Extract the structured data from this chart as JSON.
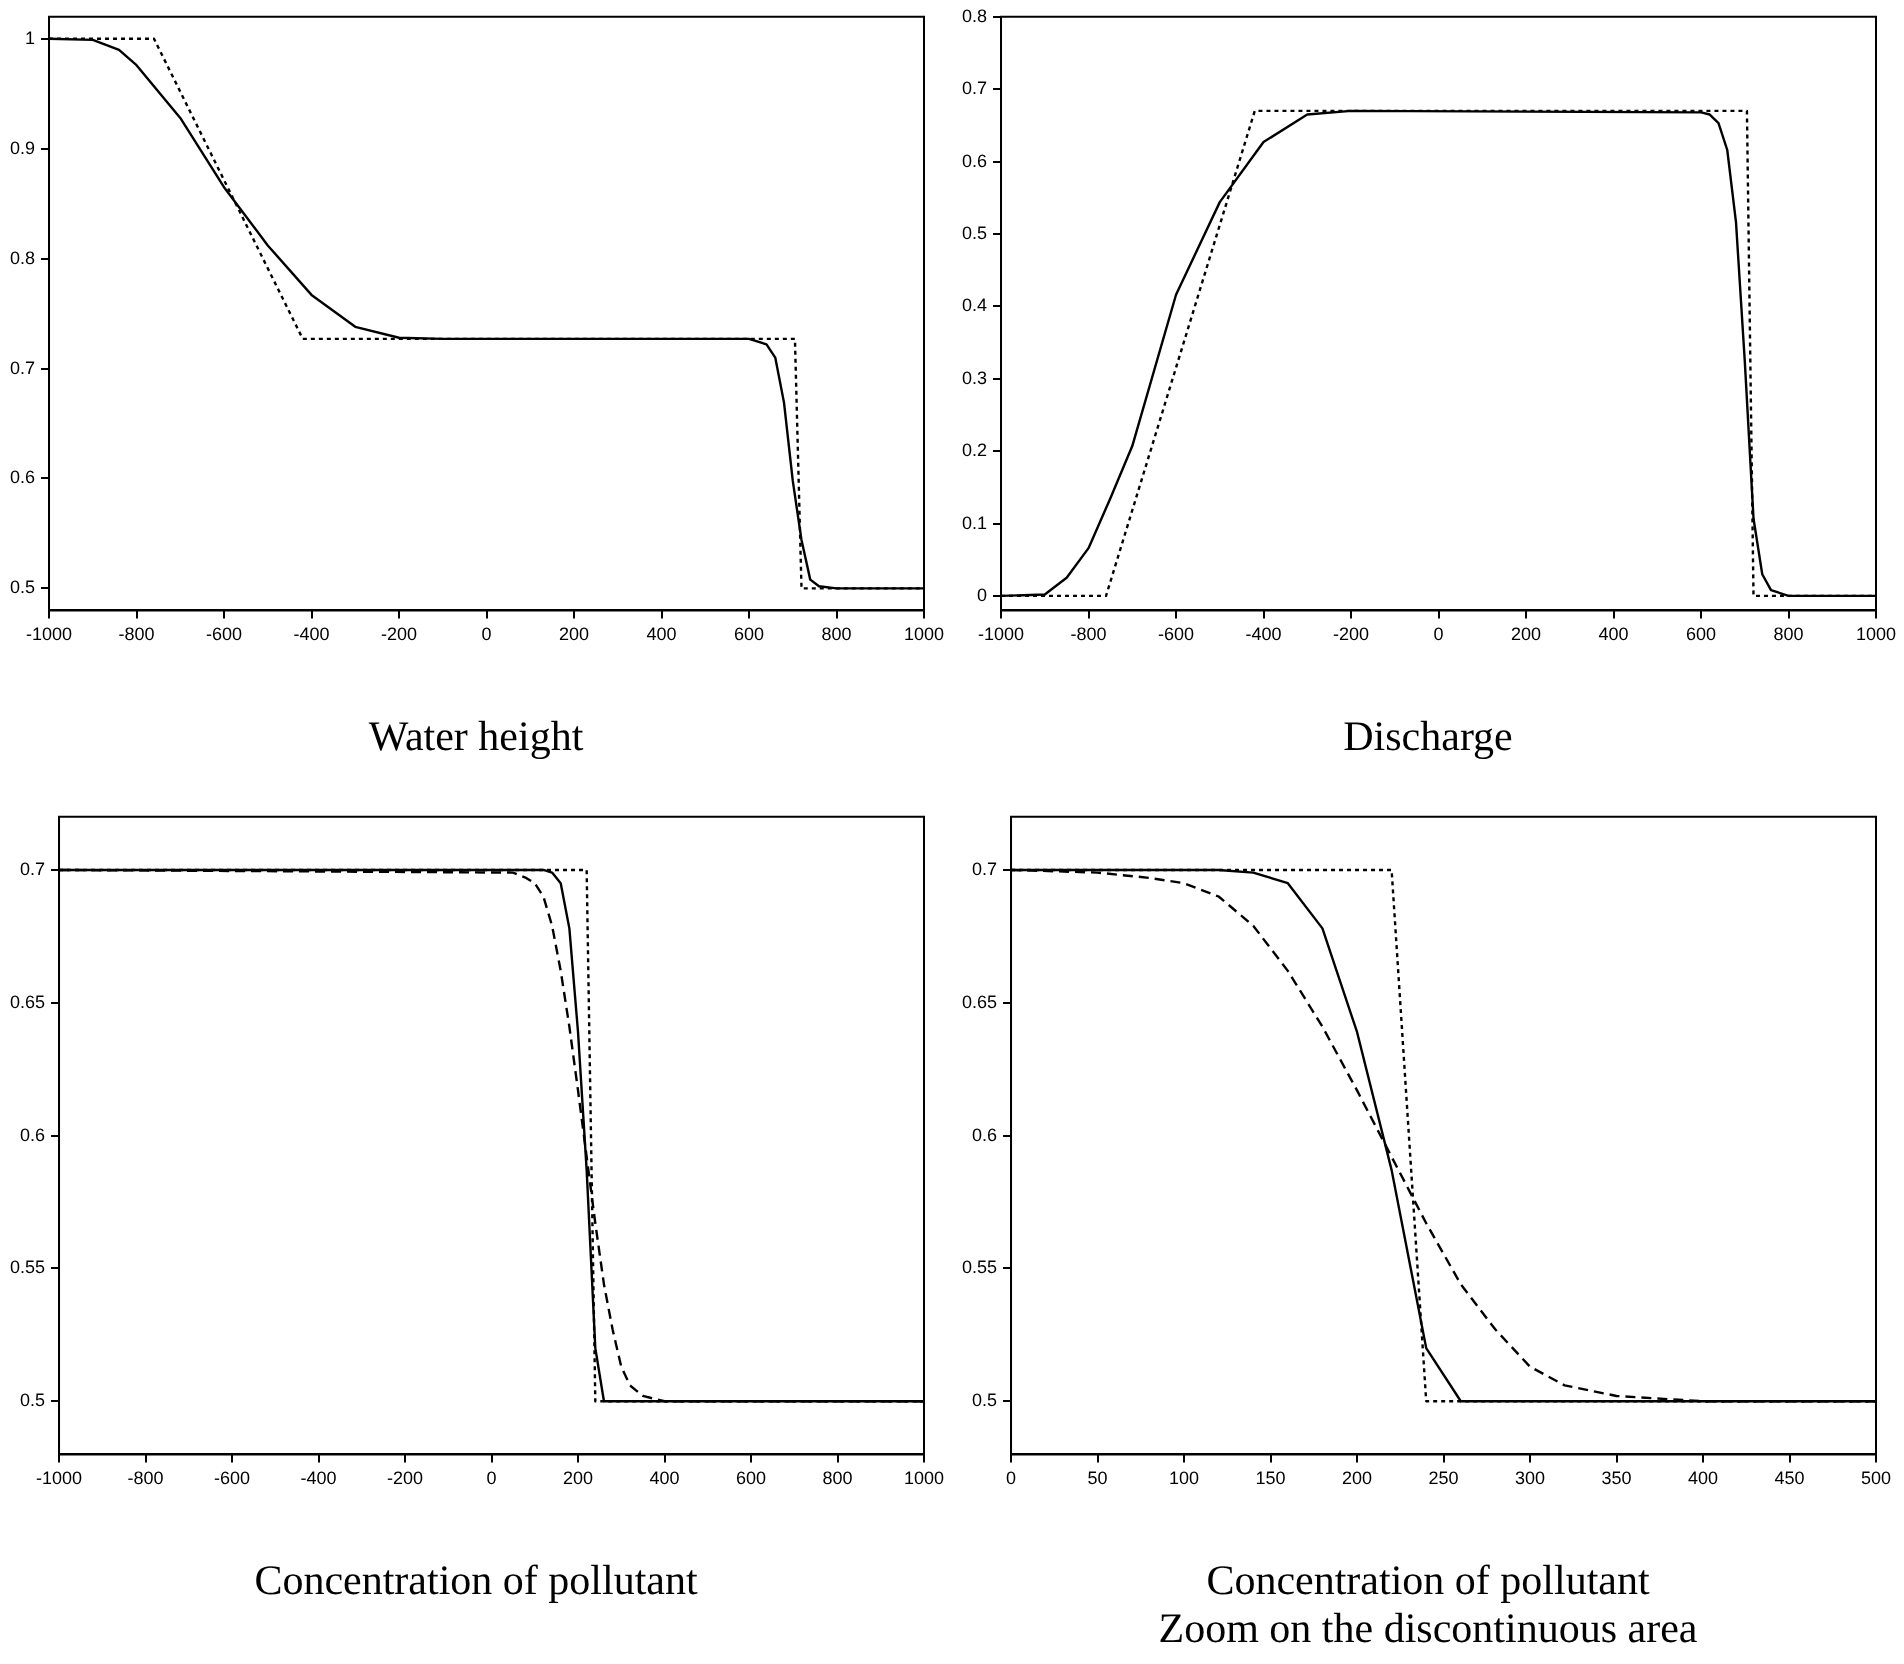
{
  "chart_data": [
    {
      "type": "line",
      "title": "Water height",
      "xlim": [
        -1000,
        1000
      ],
      "xticks": [
        -1000,
        -800,
        -600,
        -400,
        -200,
        0,
        200,
        400,
        600,
        800,
        1000
      ],
      "ylim": [
        0.48,
        1.02
      ],
      "yticks": [
        0.5,
        0.6,
        0.7,
        0.8,
        0.9,
        1
      ],
      "grid": false,
      "marker": "none",
      "series": [
        {
          "color": "#000000",
          "line_style": "solid",
          "x": [
            -1000,
            -900,
            -840,
            -800,
            -700,
            -600,
            -500,
            -400,
            -300,
            -200,
            -100,
            600,
            640,
            660,
            680,
            700,
            720,
            740,
            760,
            800,
            1000
          ],
          "values": [
            1,
            0.999,
            0.99,
            0.976,
            0.928,
            0.865,
            0.812,
            0.767,
            0.738,
            0.728,
            0.727,
            0.727,
            0.722,
            0.71,
            0.669,
            0.598,
            0.544,
            0.508,
            0.502,
            0.5,
            0.5
          ]
        },
        {
          "color": "#000000",
          "line_style": "dotted",
          "x": [
            -1000,
            -760,
            -420,
            705,
            720,
            1000
          ],
          "values": [
            1,
            1,
            0.727,
            0.727,
            0.5,
            0.5
          ]
        }
      ]
    },
    {
      "type": "line",
      "title": "Discharge",
      "xlim": [
        -1000,
        1000
      ],
      "xticks": [
        -1000,
        -800,
        -600,
        -400,
        -200,
        0,
        200,
        400,
        600,
        800,
        1000
      ],
      "ylim": [
        -0.02,
        0.8
      ],
      "yticks": [
        0,
        0.1,
        0.2,
        0.3,
        0.4,
        0.5,
        0.6,
        0.7,
        0.8
      ],
      "grid": false,
      "marker": "none",
      "series": [
        {
          "color": "#000000",
          "line_style": "solid",
          "x": [
            -1000,
            -900,
            -850,
            -800,
            -750,
            -700,
            -600,
            -500,
            -400,
            -300,
            -200,
            600,
            620,
            640,
            660,
            680,
            700,
            720,
            740,
            760,
            800,
            1000
          ],
          "values": [
            0,
            0.002,
            0.025,
            0.066,
            0.135,
            0.207,
            0.416,
            0.544,
            0.627,
            0.665,
            0.67,
            0.668,
            0.665,
            0.653,
            0.616,
            0.516,
            0.325,
            0.107,
            0.03,
            0.008,
            0,
            0
          ]
        },
        {
          "color": "#000000",
          "line_style": "dotted",
          "x": [
            -1000,
            -760,
            -420,
            705,
            720,
            1000
          ],
          "values": [
            0,
            0,
            0.67,
            0.67,
            0,
            0
          ]
        }
      ]
    },
    {
      "type": "line",
      "title": "Concentration of pollutant",
      "xlim": [
        -1000,
        1000
      ],
      "xticks": [
        -1000,
        -800,
        -600,
        -400,
        -200,
        0,
        200,
        400,
        600,
        800,
        1000
      ],
      "ylim": [
        0.48,
        0.72
      ],
      "yticks": [
        0.5,
        0.55,
        0.6,
        0.65,
        0.7
      ],
      "grid": false,
      "marker": "none",
      "series": [
        {
          "color": "#000000",
          "line_style": "solid",
          "x": [
            -1000,
            120,
            140,
            160,
            180,
            200,
            220,
            240,
            260,
            1000
          ],
          "values": [
            0.7,
            0.7,
            0.699,
            0.695,
            0.678,
            0.639,
            0.587,
            0.52,
            0.5,
            0.5
          ]
        },
        {
          "color": "#000000",
          "line_style": "dotted",
          "x": [
            -1000,
            220,
            240,
            1000
          ],
          "values": [
            0.7,
            0.7,
            0.5,
            0.5
          ]
        },
        {
          "color": "#000000",
          "line_style": "dashed",
          "x": [
            -1000,
            50,
            80,
            100,
            120,
            140,
            160,
            180,
            200,
            220,
            240,
            260,
            280,
            300,
            320,
            350,
            400,
            1000
          ],
          "values": [
            0.7,
            0.699,
            0.697,
            0.695,
            0.69,
            0.679,
            0.662,
            0.641,
            0.617,
            0.592,
            0.567,
            0.544,
            0.527,
            0.513,
            0.506,
            0.502,
            0.5,
            0.5
          ]
        }
      ]
    },
    {
      "type": "line",
      "title": "Concentration of pollutant",
      "subtitle": "Zoom on the discontinuous area",
      "xlim": [
        0,
        500
      ],
      "xticks": [
        0,
        50,
        100,
        150,
        200,
        250,
        300,
        350,
        400,
        450,
        500
      ],
      "ylim": [
        0.48,
        0.72
      ],
      "yticks": [
        0.5,
        0.55,
        0.6,
        0.65,
        0.7
      ],
      "grid": false,
      "marker": "none",
      "series": [
        {
          "color": "#000000",
          "line_style": "solid",
          "x": [
            0,
            120,
            140,
            160,
            180,
            200,
            220,
            240,
            260,
            500
          ],
          "values": [
            0.7,
            0.7,
            0.699,
            0.695,
            0.678,
            0.639,
            0.587,
            0.52,
            0.5,
            0.5
          ]
        },
        {
          "color": "#000000",
          "line_style": "dotted",
          "x": [
            0,
            220,
            240,
            500
          ],
          "values": [
            0.7,
            0.7,
            0.5,
            0.5
          ]
        },
        {
          "color": "#000000",
          "line_style": "dashed",
          "x": [
            0,
            50,
            80,
            100,
            120,
            140,
            160,
            180,
            200,
            220,
            240,
            260,
            280,
            300,
            320,
            350,
            400,
            500
          ],
          "values": [
            0.7,
            0.699,
            0.697,
            0.695,
            0.69,
            0.679,
            0.662,
            0.641,
            0.617,
            0.592,
            0.567,
            0.544,
            0.527,
            0.513,
            0.506,
            0.502,
            0.5,
            0.5
          ]
        }
      ]
    }
  ]
}
